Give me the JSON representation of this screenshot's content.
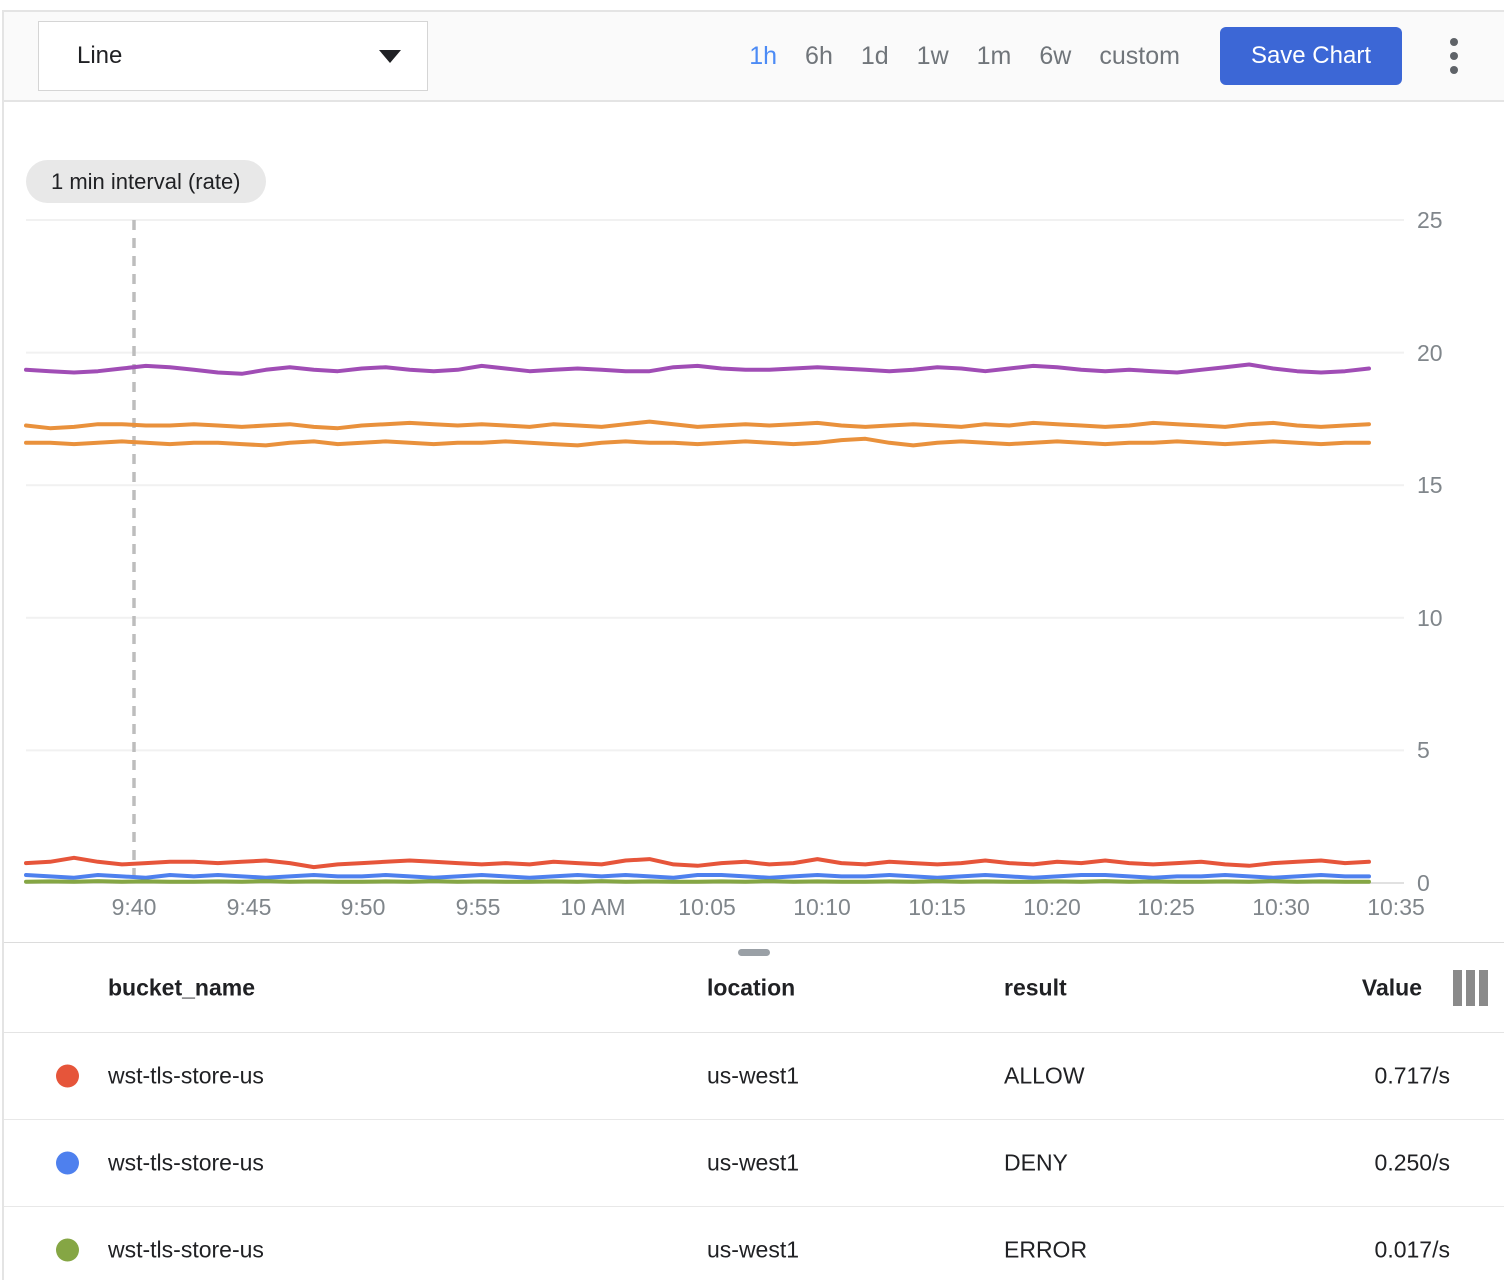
{
  "toolbar": {
    "chart_type": "Line",
    "time_ranges": [
      "1h",
      "6h",
      "1d",
      "1w",
      "1m",
      "6w",
      "custom"
    ],
    "selected_range": "1h",
    "save_button": "Save Chart"
  },
  "chart": {
    "interval_badge": "1 min interval (rate)"
  },
  "chart_data": {
    "type": "line",
    "title": "",
    "ylim": [
      0,
      25
    ],
    "y_ticks": [
      0,
      5,
      10,
      15,
      20,
      25
    ],
    "x_tick_labels": [
      "9:40",
      "9:45",
      "9:50",
      "9:55",
      "10 AM",
      "10:05",
      "10:10",
      "10:15",
      "10:20",
      "10:25",
      "10:30",
      "10:35"
    ],
    "grid": true,
    "legend_position": "table-below",
    "annotations": [
      {
        "type": "vertical-dashed-line",
        "x_label": "9:40"
      }
    ],
    "series": [
      {
        "name": "series-purple-line",
        "color": "#A04DB5",
        "values": [
          19.35,
          19.3,
          19.25,
          19.3,
          19.4,
          19.5,
          19.45,
          19.35,
          19.25,
          19.2,
          19.35,
          19.45,
          19.35,
          19.3,
          19.4,
          19.45,
          19.35,
          19.3,
          19.35,
          19.5,
          19.4,
          19.3,
          19.35,
          19.4,
          19.35,
          19.3,
          19.3,
          19.45,
          19.5,
          19.4,
          19.35,
          19.35,
          19.4,
          19.45,
          19.4,
          19.35,
          19.3,
          19.35,
          19.45,
          19.4,
          19.3,
          19.4,
          19.5,
          19.45,
          19.35,
          19.3,
          19.35,
          19.3,
          19.25,
          19.35,
          19.45,
          19.55,
          19.4,
          19.3,
          19.25,
          19.3,
          19.4
        ]
      },
      {
        "name": "series-orange-line-upper",
        "color": "#E9913C",
        "values": [
          17.25,
          17.15,
          17.2,
          17.3,
          17.3,
          17.25,
          17.25,
          17.3,
          17.25,
          17.2,
          17.25,
          17.3,
          17.2,
          17.15,
          17.25,
          17.3,
          17.35,
          17.3,
          17.25,
          17.3,
          17.25,
          17.2,
          17.3,
          17.25,
          17.2,
          17.3,
          17.4,
          17.3,
          17.2,
          17.25,
          17.3,
          17.25,
          17.3,
          17.35,
          17.25,
          17.2,
          17.25,
          17.3,
          17.25,
          17.2,
          17.3,
          17.25,
          17.35,
          17.3,
          17.25,
          17.2,
          17.25,
          17.35,
          17.3,
          17.25,
          17.2,
          17.3,
          17.35,
          17.25,
          17.2,
          17.25,
          17.3
        ]
      },
      {
        "name": "series-orange-line-lower",
        "color": "#E9913C",
        "values": [
          16.6,
          16.6,
          16.55,
          16.6,
          16.65,
          16.6,
          16.55,
          16.6,
          16.6,
          16.55,
          16.5,
          16.6,
          16.65,
          16.55,
          16.6,
          16.65,
          16.6,
          16.55,
          16.6,
          16.6,
          16.65,
          16.6,
          16.55,
          16.5,
          16.6,
          16.65,
          16.6,
          16.6,
          16.55,
          16.6,
          16.65,
          16.6,
          16.55,
          16.6,
          16.7,
          16.75,
          16.6,
          16.5,
          16.6,
          16.65,
          16.6,
          16.55,
          16.6,
          16.65,
          16.6,
          16.55,
          16.6,
          16.6,
          16.65,
          16.6,
          16.55,
          16.6,
          16.65,
          16.6,
          16.55,
          16.6,
          16.6
        ]
      },
      {
        "name": "series-red-line",
        "color": "#E6553A",
        "values": [
          0.75,
          0.8,
          0.95,
          0.8,
          0.7,
          0.75,
          0.8,
          0.8,
          0.75,
          0.8,
          0.85,
          0.75,
          0.6,
          0.7,
          0.75,
          0.8,
          0.85,
          0.8,
          0.75,
          0.7,
          0.75,
          0.7,
          0.8,
          0.75,
          0.7,
          0.85,
          0.9,
          0.7,
          0.65,
          0.75,
          0.8,
          0.7,
          0.75,
          0.9,
          0.75,
          0.7,
          0.8,
          0.75,
          0.7,
          0.75,
          0.85,
          0.75,
          0.7,
          0.8,
          0.75,
          0.85,
          0.75,
          0.7,
          0.75,
          0.8,
          0.7,
          0.65,
          0.75,
          0.8,
          0.85,
          0.75,
          0.8
        ]
      },
      {
        "name": "series-blue-line",
        "color": "#4E80EE",
        "values": [
          0.3,
          0.25,
          0.2,
          0.3,
          0.25,
          0.2,
          0.3,
          0.25,
          0.3,
          0.25,
          0.2,
          0.25,
          0.3,
          0.25,
          0.25,
          0.3,
          0.25,
          0.2,
          0.25,
          0.3,
          0.25,
          0.2,
          0.25,
          0.3,
          0.25,
          0.3,
          0.25,
          0.2,
          0.3,
          0.3,
          0.25,
          0.2,
          0.25,
          0.3,
          0.25,
          0.25,
          0.3,
          0.25,
          0.2,
          0.25,
          0.3,
          0.25,
          0.2,
          0.25,
          0.3,
          0.3,
          0.25,
          0.2,
          0.25,
          0.25,
          0.3,
          0.25,
          0.2,
          0.25,
          0.3,
          0.25,
          0.25
        ]
      },
      {
        "name": "series-green-line",
        "color": "#85A644",
        "values": [
          0.05,
          0.06,
          0.05,
          0.07,
          0.05,
          0.06,
          0.05,
          0.05,
          0.06,
          0.05,
          0.07,
          0.05,
          0.06,
          0.05,
          0.05,
          0.06,
          0.05,
          0.07,
          0.05,
          0.06,
          0.05,
          0.05,
          0.06,
          0.05,
          0.07,
          0.05,
          0.06,
          0.05,
          0.05,
          0.06,
          0.05,
          0.07,
          0.05,
          0.06,
          0.05,
          0.05,
          0.06,
          0.05,
          0.07,
          0.05,
          0.06,
          0.05,
          0.05,
          0.06,
          0.05,
          0.07,
          0.05,
          0.06,
          0.05,
          0.05,
          0.06,
          0.05,
          0.07,
          0.05,
          0.06,
          0.05,
          0.05
        ]
      }
    ]
  },
  "table": {
    "columns": [
      "bucket_name",
      "location",
      "result",
      "Value"
    ],
    "rows": [
      {
        "dot_color": "#E6553A",
        "bucket_name": "wst-tls-store-us",
        "location": "us-west1",
        "result": "ALLOW",
        "value": "0.717/s"
      },
      {
        "dot_color": "#4E80EE",
        "bucket_name": "wst-tls-store-us",
        "location": "us-west1",
        "result": "DENY",
        "value": "0.250/s"
      },
      {
        "dot_color": "#85A644",
        "bucket_name": "wst-tls-store-us",
        "location": "us-west1",
        "result": "ERROR",
        "value": "0.017/s"
      }
    ]
  }
}
